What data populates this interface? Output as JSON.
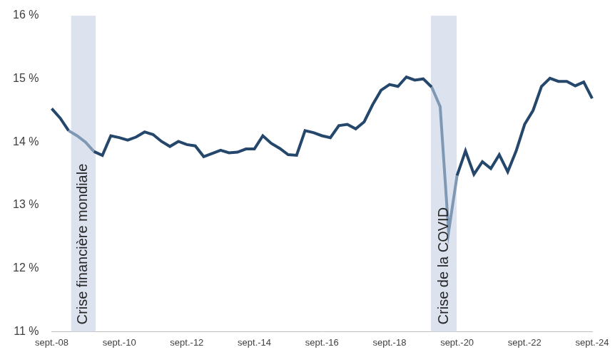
{
  "chart_data": {
    "type": "line",
    "categories": [
      "sept.-08",
      null,
      null,
      null,
      null,
      null,
      null,
      null,
      "sept.-10",
      null,
      null,
      null,
      null,
      null,
      null,
      null,
      "sept.-12",
      null,
      null,
      null,
      null,
      null,
      null,
      null,
      "sept.-14",
      null,
      null,
      null,
      null,
      null,
      null,
      null,
      "sept.-16",
      null,
      null,
      null,
      null,
      null,
      null,
      null,
      "sept.-18",
      null,
      null,
      null,
      null,
      null,
      null,
      null,
      "sept.-20",
      null,
      null,
      null,
      null,
      null,
      null,
      null,
      "sept.-22",
      null,
      null,
      null,
      null,
      null,
      null,
      null,
      "sept.-24"
    ],
    "values": [
      14.53,
      14.38,
      14.18,
      14.1,
      14.0,
      13.85,
      13.79,
      14.1,
      14.07,
      14.03,
      14.08,
      14.16,
      14.12,
      14.01,
      13.93,
      14.01,
      13.96,
      13.94,
      13.77,
      13.82,
      13.87,
      13.83,
      13.84,
      13.89,
      13.89,
      14.1,
      13.98,
      13.9,
      13.8,
      13.79,
      14.18,
      14.15,
      14.1,
      14.07,
      14.26,
      14.28,
      14.21,
      14.32,
      14.59,
      14.82,
      14.91,
      14.88,
      15.03,
      14.98,
      15.0,
      14.87,
      14.56,
      12.58,
      13.47,
      13.86,
      13.49,
      13.69,
      13.58,
      13.8,
      13.53,
      13.86,
      14.28,
      14.5,
      14.88,
      15.01,
      14.96,
      14.96,
      14.89,
      14.95,
      14.69
    ],
    "color": "#24476b",
    "ylim": [
      11,
      16
    ],
    "yticks": [
      {
        "value": 11,
        "label": "11 %"
      },
      {
        "value": 12,
        "label": "12 %"
      },
      {
        "value": 13,
        "label": "13 %"
      },
      {
        "value": 14,
        "label": "14 %"
      },
      {
        "value": 15,
        "label": "15 %"
      },
      {
        "value": 16,
        "label": "16 %"
      }
    ],
    "grid": false,
    "annotations": [
      {
        "text": "Crise financière mondiale",
        "start": 2.3,
        "end": 5.2
      },
      {
        "text": "Crise de la COVID",
        "start": 44.9,
        "end": 47.96
      }
    ]
  }
}
